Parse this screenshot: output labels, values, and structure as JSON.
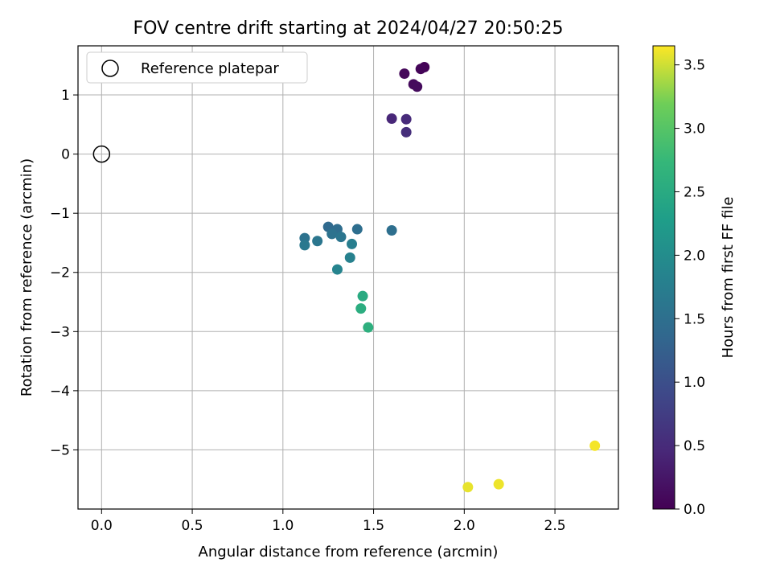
{
  "chart_data": {
    "type": "scatter",
    "title": "FOV centre drift starting at 2024/04/27 20:50:25",
    "xlabel": "Angular distance from reference (arcmin)",
    "ylabel": "Rotation from reference (arcmin)",
    "xlim": [
      -0.13,
      2.85
    ],
    "ylim": [
      -6.0,
      1.83
    ],
    "xticks": [
      0.0,
      0.5,
      1.0,
      1.5,
      2.0,
      2.5
    ],
    "xtick_labels": [
      "0.0",
      "0.5",
      "1.0",
      "1.5",
      "2.0",
      "2.5"
    ],
    "yticks": [
      1,
      0,
      -1,
      -2,
      -3,
      -4,
      -5
    ],
    "ytick_labels": [
      "1",
      "0",
      "−1",
      "−2",
      "−3",
      "−4",
      "−5"
    ],
    "grid": true,
    "legend": {
      "position": "upper-left",
      "entries": [
        {
          "label": "Reference platepar",
          "marker": "open-circle"
        }
      ]
    },
    "reference_point": {
      "x": 0.0,
      "y": 0.0
    },
    "colorbar": {
      "label": "Hours from first FF file",
      "colormap": "viridis",
      "range": [
        0.0,
        3.65
      ],
      "ticks": [
        0.0,
        0.5,
        1.0,
        1.5,
        2.0,
        2.5,
        3.0,
        3.5
      ],
      "tick_labels": [
        "0.0",
        "0.5",
        "1.0",
        "1.5",
        "2.0",
        "2.5",
        "3.0",
        "3.5"
      ]
    },
    "points": [
      {
        "x": 1.78,
        "y": 1.47,
        "c": 0.02
      },
      {
        "x": 1.76,
        "y": 1.44,
        "c": 0.05
      },
      {
        "x": 1.67,
        "y": 1.36,
        "c": 0.08
      },
      {
        "x": 1.72,
        "y": 1.18,
        "c": 0.1
      },
      {
        "x": 1.74,
        "y": 1.14,
        "c": 0.12
      },
      {
        "x": 1.6,
        "y": 0.6,
        "c": 0.45
      },
      {
        "x": 1.68,
        "y": 0.59,
        "c": 0.5
      },
      {
        "x": 1.68,
        "y": 0.37,
        "c": 0.55
      },
      {
        "x": 1.25,
        "y": -1.23,
        "c": 1.4
      },
      {
        "x": 1.3,
        "y": -1.27,
        "c": 1.45
      },
      {
        "x": 1.41,
        "y": -1.27,
        "c": 1.48
      },
      {
        "x": 1.6,
        "y": -1.29,
        "c": 1.5
      },
      {
        "x": 1.27,
        "y": -1.35,
        "c": 1.55
      },
      {
        "x": 1.12,
        "y": -1.42,
        "c": 1.55
      },
      {
        "x": 1.32,
        "y": -1.4,
        "c": 1.6
      },
      {
        "x": 1.19,
        "y": -1.47,
        "c": 1.62
      },
      {
        "x": 1.12,
        "y": -1.54,
        "c": 1.65
      },
      {
        "x": 1.38,
        "y": -1.52,
        "c": 1.75
      },
      {
        "x": 1.37,
        "y": -1.75,
        "c": 1.8
      },
      {
        "x": 1.3,
        "y": -1.95,
        "c": 1.85
      },
      {
        "x": 1.44,
        "y": -2.4,
        "c": 2.5
      },
      {
        "x": 1.43,
        "y": -2.61,
        "c": 2.55
      },
      {
        "x": 1.47,
        "y": -2.93,
        "c": 2.6
      },
      {
        "x": 2.72,
        "y": -4.93,
        "c": 3.62
      },
      {
        "x": 2.19,
        "y": -5.58,
        "c": 3.6
      },
      {
        "x": 2.02,
        "y": -5.63,
        "c": 3.58
      }
    ]
  }
}
